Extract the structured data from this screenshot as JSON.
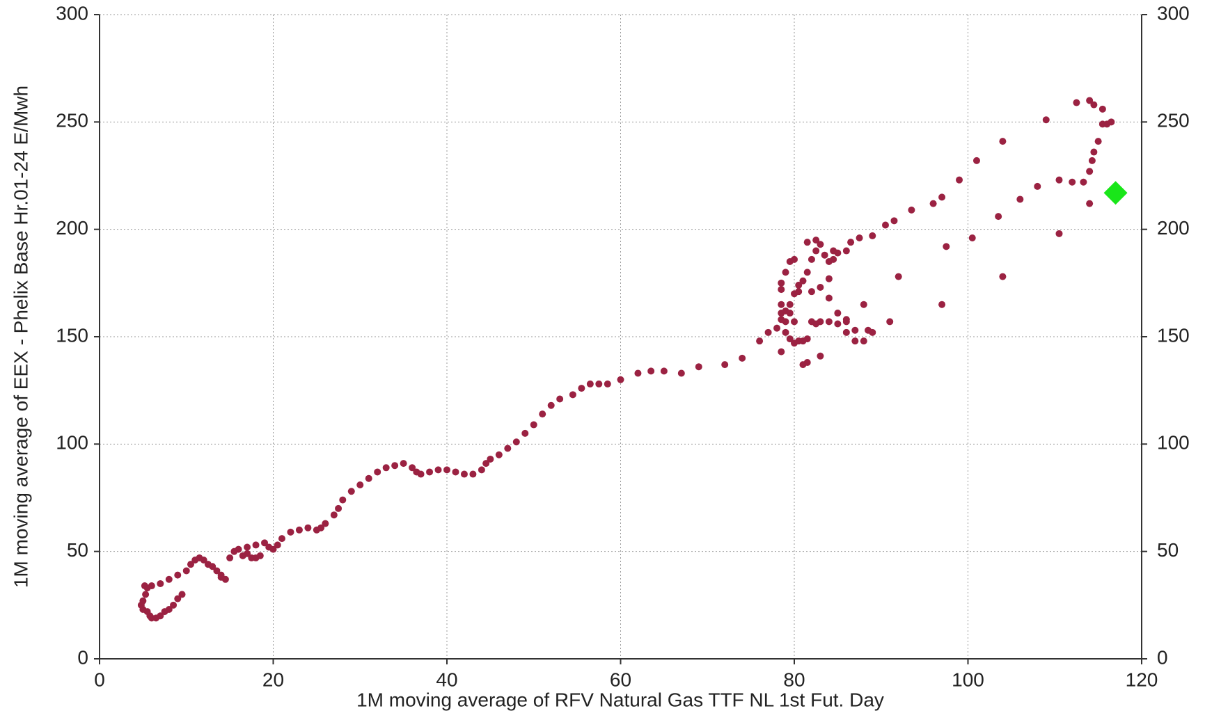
{
  "chart_data": {
    "type": "scatter",
    "xlabel": "1M moving average of RFV Natural Gas TTF NL 1st Fut. Day",
    "ylabel": "1M moving average of EEX - Phelix Base Hr.01-24 E/Mwh",
    "xlim": [
      0,
      120
    ],
    "xticks": [
      0,
      20,
      40,
      60,
      80,
      100,
      120
    ],
    "ylim": [
      0,
      300
    ],
    "yticks": [
      0,
      50,
      100,
      150,
      200,
      250,
      300
    ],
    "y2lim": [
      0,
      300
    ],
    "y2ticks": [
      0,
      50,
      100,
      150,
      200,
      250,
      300
    ],
    "grid": true,
    "series": [
      {
        "color": "#9b2242",
        "marker": "circle",
        "x": [
          9.5,
          9,
          8.5,
          8,
          7.5,
          7,
          6.5,
          6,
          5.8,
          5.5,
          5,
          4.8,
          5,
          5.3,
          5.5,
          5.2,
          6,
          7,
          8,
          9,
          10,
          10.5,
          11,
          11.5,
          12,
          12.5,
          13,
          13.5,
          14,
          14.5,
          14,
          15,
          15.5,
          16,
          17,
          17.5,
          18,
          18.5,
          16.5,
          17,
          18,
          19,
          19.5,
          20,
          20.5,
          21,
          22,
          23,
          24,
          25,
          25.5,
          26,
          27,
          27.5,
          28,
          29,
          30,
          31,
          32,
          33,
          34,
          35,
          36,
          36.5,
          37,
          38,
          39,
          40,
          41,
          42,
          43,
          44,
          44.5,
          45,
          46,
          47,
          48,
          49,
          50,
          51,
          52,
          53,
          54.5,
          55.5,
          56.5,
          57.5,
          58.5,
          60,
          62,
          63.5,
          65,
          67,
          69,
          72,
          74,
          76,
          77,
          78,
          78.5,
          79,
          79.5,
          80,
          80.5,
          81,
          81.5,
          82,
          82.5,
          83,
          83.5,
          84,
          84.5,
          85,
          86,
          86.5,
          87.5,
          89,
          90.5,
          91.5,
          93.5,
          96,
          97,
          99,
          101,
          104,
          109,
          112.5,
          114,
          114.5,
          115.5,
          115.5,
          116,
          116.5,
          115,
          114.5,
          114.3,
          114,
          113.3,
          112,
          110.5,
          108,
          106,
          103.5,
          100.5,
          97.5,
          104,
          110.5,
          114,
          92,
          97,
          91,
          89,
          88.5,
          88,
          87,
          87,
          86,
          85,
          84,
          83,
          82.5,
          82,
          81.5,
          81,
          80.5,
          80,
          79.5,
          79,
          78.5,
          80,
          79,
          78.5,
          79.5,
          78.5,
          80.5,
          82,
          83,
          84,
          84,
          85,
          86,
          81.5,
          81,
          83,
          79.5,
          80,
          79,
          78.5,
          78.5,
          82.5,
          81.5,
          84.5,
          88,
          86
        ],
        "y": [
          30,
          28,
          25,
          23,
          22,
          20,
          19,
          19,
          20,
          22,
          23,
          25,
          27,
          30,
          33,
          34,
          34,
          35,
          37,
          39,
          41,
          44,
          46,
          47,
          46,
          44,
          43,
          41,
          39,
          37,
          38,
          47,
          50,
          51,
          49,
          47,
          47,
          48,
          48,
          52,
          53,
          54,
          52,
          51,
          53,
          56,
          59,
          60,
          61,
          60,
          61,
          63,
          67,
          70,
          74,
          78,
          81,
          84,
          87,
          89,
          90,
          91,
          89,
          87,
          86,
          87,
          88,
          88,
          87,
          86,
          86,
          88,
          91,
          93,
          95,
          98,
          101,
          105,
          109,
          114,
          118,
          121,
          123,
          126,
          128,
          128,
          128,
          130,
          133,
          134,
          134,
          133,
          136,
          137,
          140,
          148,
          152,
          154,
          158,
          162,
          165,
          170,
          174,
          176,
          180,
          186,
          190,
          193,
          188,
          185,
          190,
          189,
          190,
          194,
          196,
          197,
          202,
          204,
          209,
          212,
          215,
          223,
          232,
          241,
          251,
          259,
          260,
          258,
          256,
          249,
          249,
          250,
          241,
          236,
          232,
          227,
          222,
          222,
          223,
          220,
          214,
          206,
          196,
          192,
          178,
          198,
          212,
          178,
          165,
          157,
          152,
          153,
          148,
          148,
          153,
          157,
          156,
          157,
          157,
          156,
          157,
          149,
          148,
          148,
          147,
          149,
          152,
          143,
          157,
          157,
          161,
          161,
          165,
          171,
          171,
          173,
          177,
          168,
          161,
          158,
          138,
          137,
          141,
          185,
          186,
          180,
          175,
          172,
          195,
          194,
          186,
          165,
          152
        ]
      },
      {
        "color": "#19e619",
        "marker": "diamond",
        "x": [
          117
        ],
        "y": [
          217
        ]
      }
    ]
  }
}
